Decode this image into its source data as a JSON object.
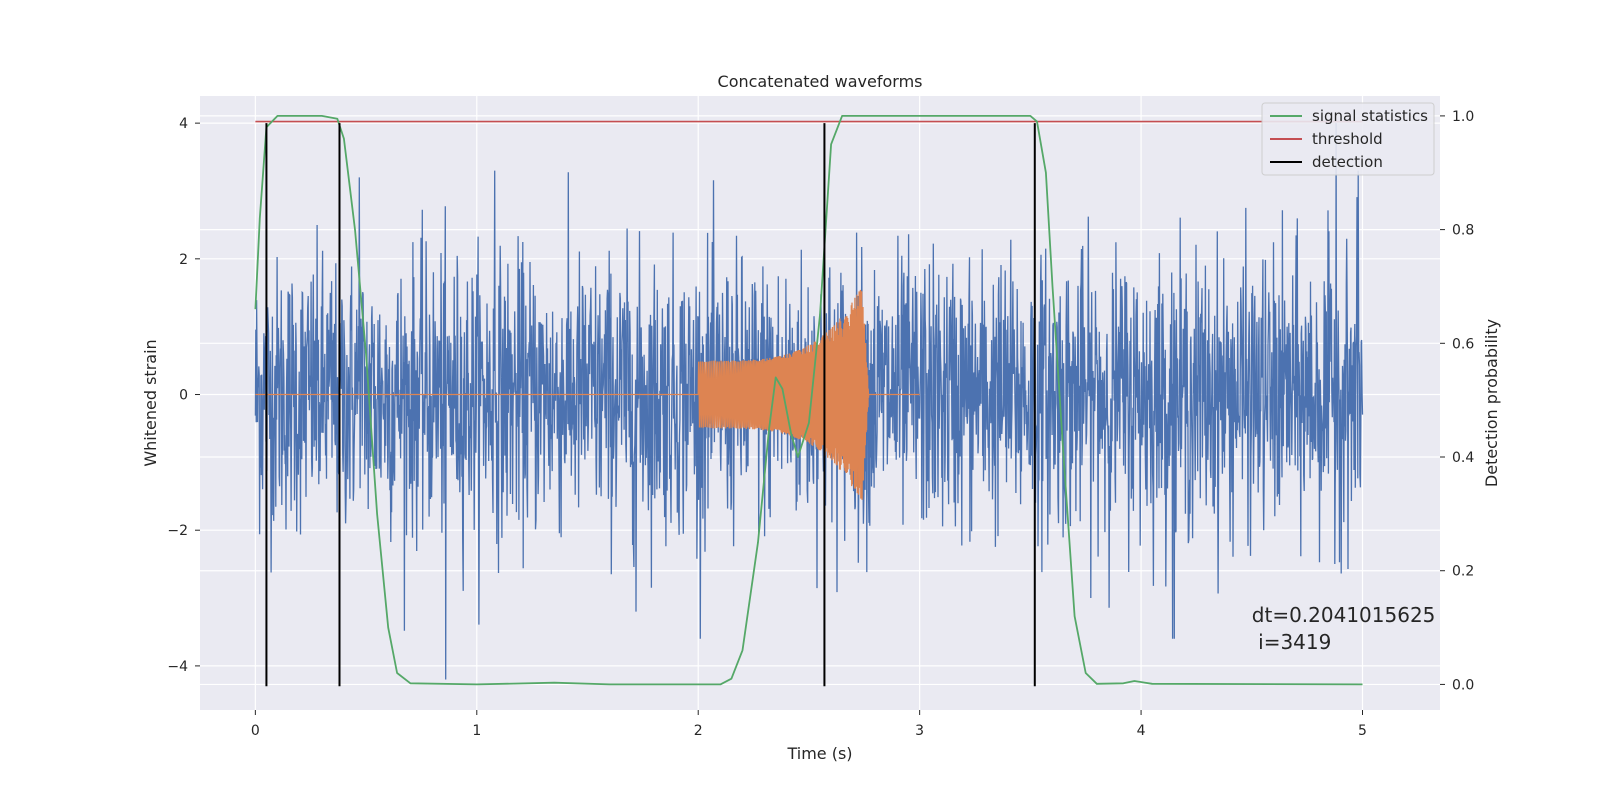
{
  "chart_data": {
    "type": "line",
    "title": "Concatenated waveforms",
    "xlabel": "Time (s)",
    "ylabel_left": "Whitened strain",
    "ylabel_right": "Detection probability",
    "xlim": [
      -0.25,
      5.35
    ],
    "ylim_left": [
      -4.65,
      4.4
    ],
    "ylim_right": [
      -0.045,
      1.035
    ],
    "xticks": [
      0,
      1,
      2,
      3,
      4,
      5
    ],
    "xtick_labels": [
      "0",
      "1",
      "2",
      "3",
      "4",
      "5"
    ],
    "yticks_left": [
      -4,
      -2,
      0,
      2,
      4
    ],
    "ytick_labels_left": [
      "−4",
      "−2",
      "0",
      "2",
      "4"
    ],
    "yticks_right": [
      0.0,
      0.2,
      0.4,
      0.6,
      0.8,
      1.0
    ],
    "ytick_labels_right": [
      "0.0",
      "0.2",
      "0.4",
      "0.6",
      "0.8",
      "1.0"
    ],
    "grid": true,
    "legend_position": "top-right",
    "legend": [
      {
        "label": "signal statistics",
        "color": "#55a868"
      },
      {
        "label": "threshold",
        "color": "#c44e52"
      },
      {
        "label": "detection",
        "color": "#000000"
      }
    ],
    "noise": {
      "color": "#4c72b0",
      "x_range": [
        0,
        5
      ],
      "typical_amplitude": 1.0,
      "peak_amplitude": 4.0,
      "notable_peaks": [
        [
          0.86,
          -4.2
        ],
        [
          4.88,
          4.0
        ],
        [
          4.98,
          3.3
        ],
        [
          1.72,
          -3.2
        ],
        [
          0.47,
          3.2
        ],
        [
          1.08,
          3.3
        ],
        [
          4.15,
          -3.6
        ]
      ]
    },
    "chirp": {
      "color": "#dd8452",
      "start": 2.0,
      "end": 2.77,
      "amplitude_start": 0.5,
      "amplitude_end": 1.8,
      "baseline_range": [
        0,
        3.0
      ]
    },
    "signal_statistics": {
      "color": "#55a868",
      "points": [
        [
          0.0,
          0.66
        ],
        [
          0.02,
          0.82
        ],
        [
          0.05,
          0.98
        ],
        [
          0.1,
          1.0
        ],
        [
          0.3,
          1.0
        ],
        [
          0.37,
          0.995
        ],
        [
          0.4,
          0.96
        ],
        [
          0.45,
          0.8
        ],
        [
          0.5,
          0.58
        ],
        [
          0.55,
          0.3
        ],
        [
          0.6,
          0.1
        ],
        [
          0.64,
          0.02
        ],
        [
          0.7,
          0.002
        ],
        [
          1.0,
          0.0
        ],
        [
          1.35,
          0.003
        ],
        [
          1.6,
          0.0
        ],
        [
          2.1,
          0.0
        ],
        [
          2.15,
          0.01
        ],
        [
          2.2,
          0.06
        ],
        [
          2.27,
          0.25
        ],
        [
          2.32,
          0.45
        ],
        [
          2.35,
          0.54
        ],
        [
          2.38,
          0.52
        ],
        [
          2.42,
          0.44
        ],
        [
          2.45,
          0.4
        ],
        [
          2.5,
          0.46
        ],
        [
          2.55,
          0.65
        ],
        [
          2.6,
          0.95
        ],
        [
          2.65,
          1.0
        ],
        [
          3.5,
          1.0
        ],
        [
          3.53,
          0.99
        ],
        [
          3.57,
          0.9
        ],
        [
          3.6,
          0.7
        ],
        [
          3.65,
          0.4
        ],
        [
          3.7,
          0.12
        ],
        [
          3.75,
          0.02
        ],
        [
          3.8,
          0.001
        ],
        [
          3.92,
          0.002
        ],
        [
          3.97,
          0.006
        ],
        [
          4.05,
          0.001
        ],
        [
          5.0,
          0.0
        ]
      ]
    },
    "threshold": {
      "color": "#c44e52",
      "x_range": [
        0,
        5
      ],
      "value": 0.99
    },
    "detections": {
      "color": "#000000",
      "x": [
        0.05,
        0.38,
        2.57,
        3.52
      ],
      "y_range": [
        -4.3,
        4.0
      ]
    },
    "annotation": {
      "line1": "dt=0.2041015625",
      "line2": " i=3419",
      "x": 4.5,
      "y_line1": -3.35,
      "y_line2": -3.75
    }
  }
}
